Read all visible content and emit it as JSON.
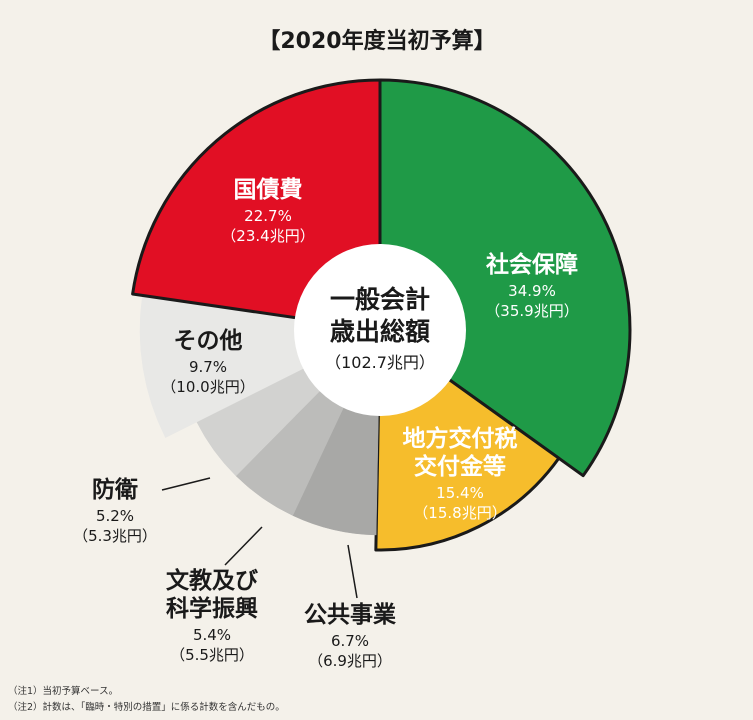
{
  "chart_data": {
    "type": "pie",
    "title": "【2020年度当初予算】",
    "center": {
      "line1": "一般会計",
      "line2": "歳出総額",
      "total": "（102.7兆円）"
    },
    "slices": [
      {
        "name": "社会保障",
        "percent": 34.9,
        "percent_label": "34.9%",
        "amount": 35.9,
        "amount_label": "（35.9兆円）",
        "color": "#1f9a47"
      },
      {
        "name": "地方交付税交付金等",
        "name_lines": [
          "地方交付税",
          "交付金等"
        ],
        "percent": 15.4,
        "percent_label": "15.4%",
        "amount": 15.8,
        "amount_label": "（15.8兆円）",
        "color": "#f6bd2c"
      },
      {
        "name": "公共事業",
        "percent": 6.7,
        "percent_label": "6.7%",
        "amount": 6.9,
        "amount_label": "（6.9兆円）",
        "color": "#a8a8a6"
      },
      {
        "name": "文教及び科学振興",
        "name_lines": [
          "文教及び",
          "科学振興"
        ],
        "percent": 5.4,
        "percent_label": "5.4%",
        "amount": 5.5,
        "amount_label": "（5.5兆円）",
        "color": "#bcbcba"
      },
      {
        "name": "防衛",
        "percent": 5.2,
        "percent_label": "5.2%",
        "amount": 5.3,
        "amount_label": "（5.3兆円）",
        "color": "#d2d2d0"
      },
      {
        "name": "その他",
        "percent": 9.7,
        "percent_label": "9.7%",
        "amount": 10.0,
        "amount_label": "（10.0兆円）",
        "color": "#e8e8e6"
      },
      {
        "name": "国債費",
        "percent": 22.7,
        "percent_label": "22.7%",
        "amount": 23.4,
        "amount_label": "（23.4兆円）",
        "color": "#e10f24"
      }
    ],
    "notes": [
      "（注1）当初予算ベース。",
      "（注2）計数は、「臨時・特別の措置」に係る計数を含んだもの。"
    ]
  }
}
